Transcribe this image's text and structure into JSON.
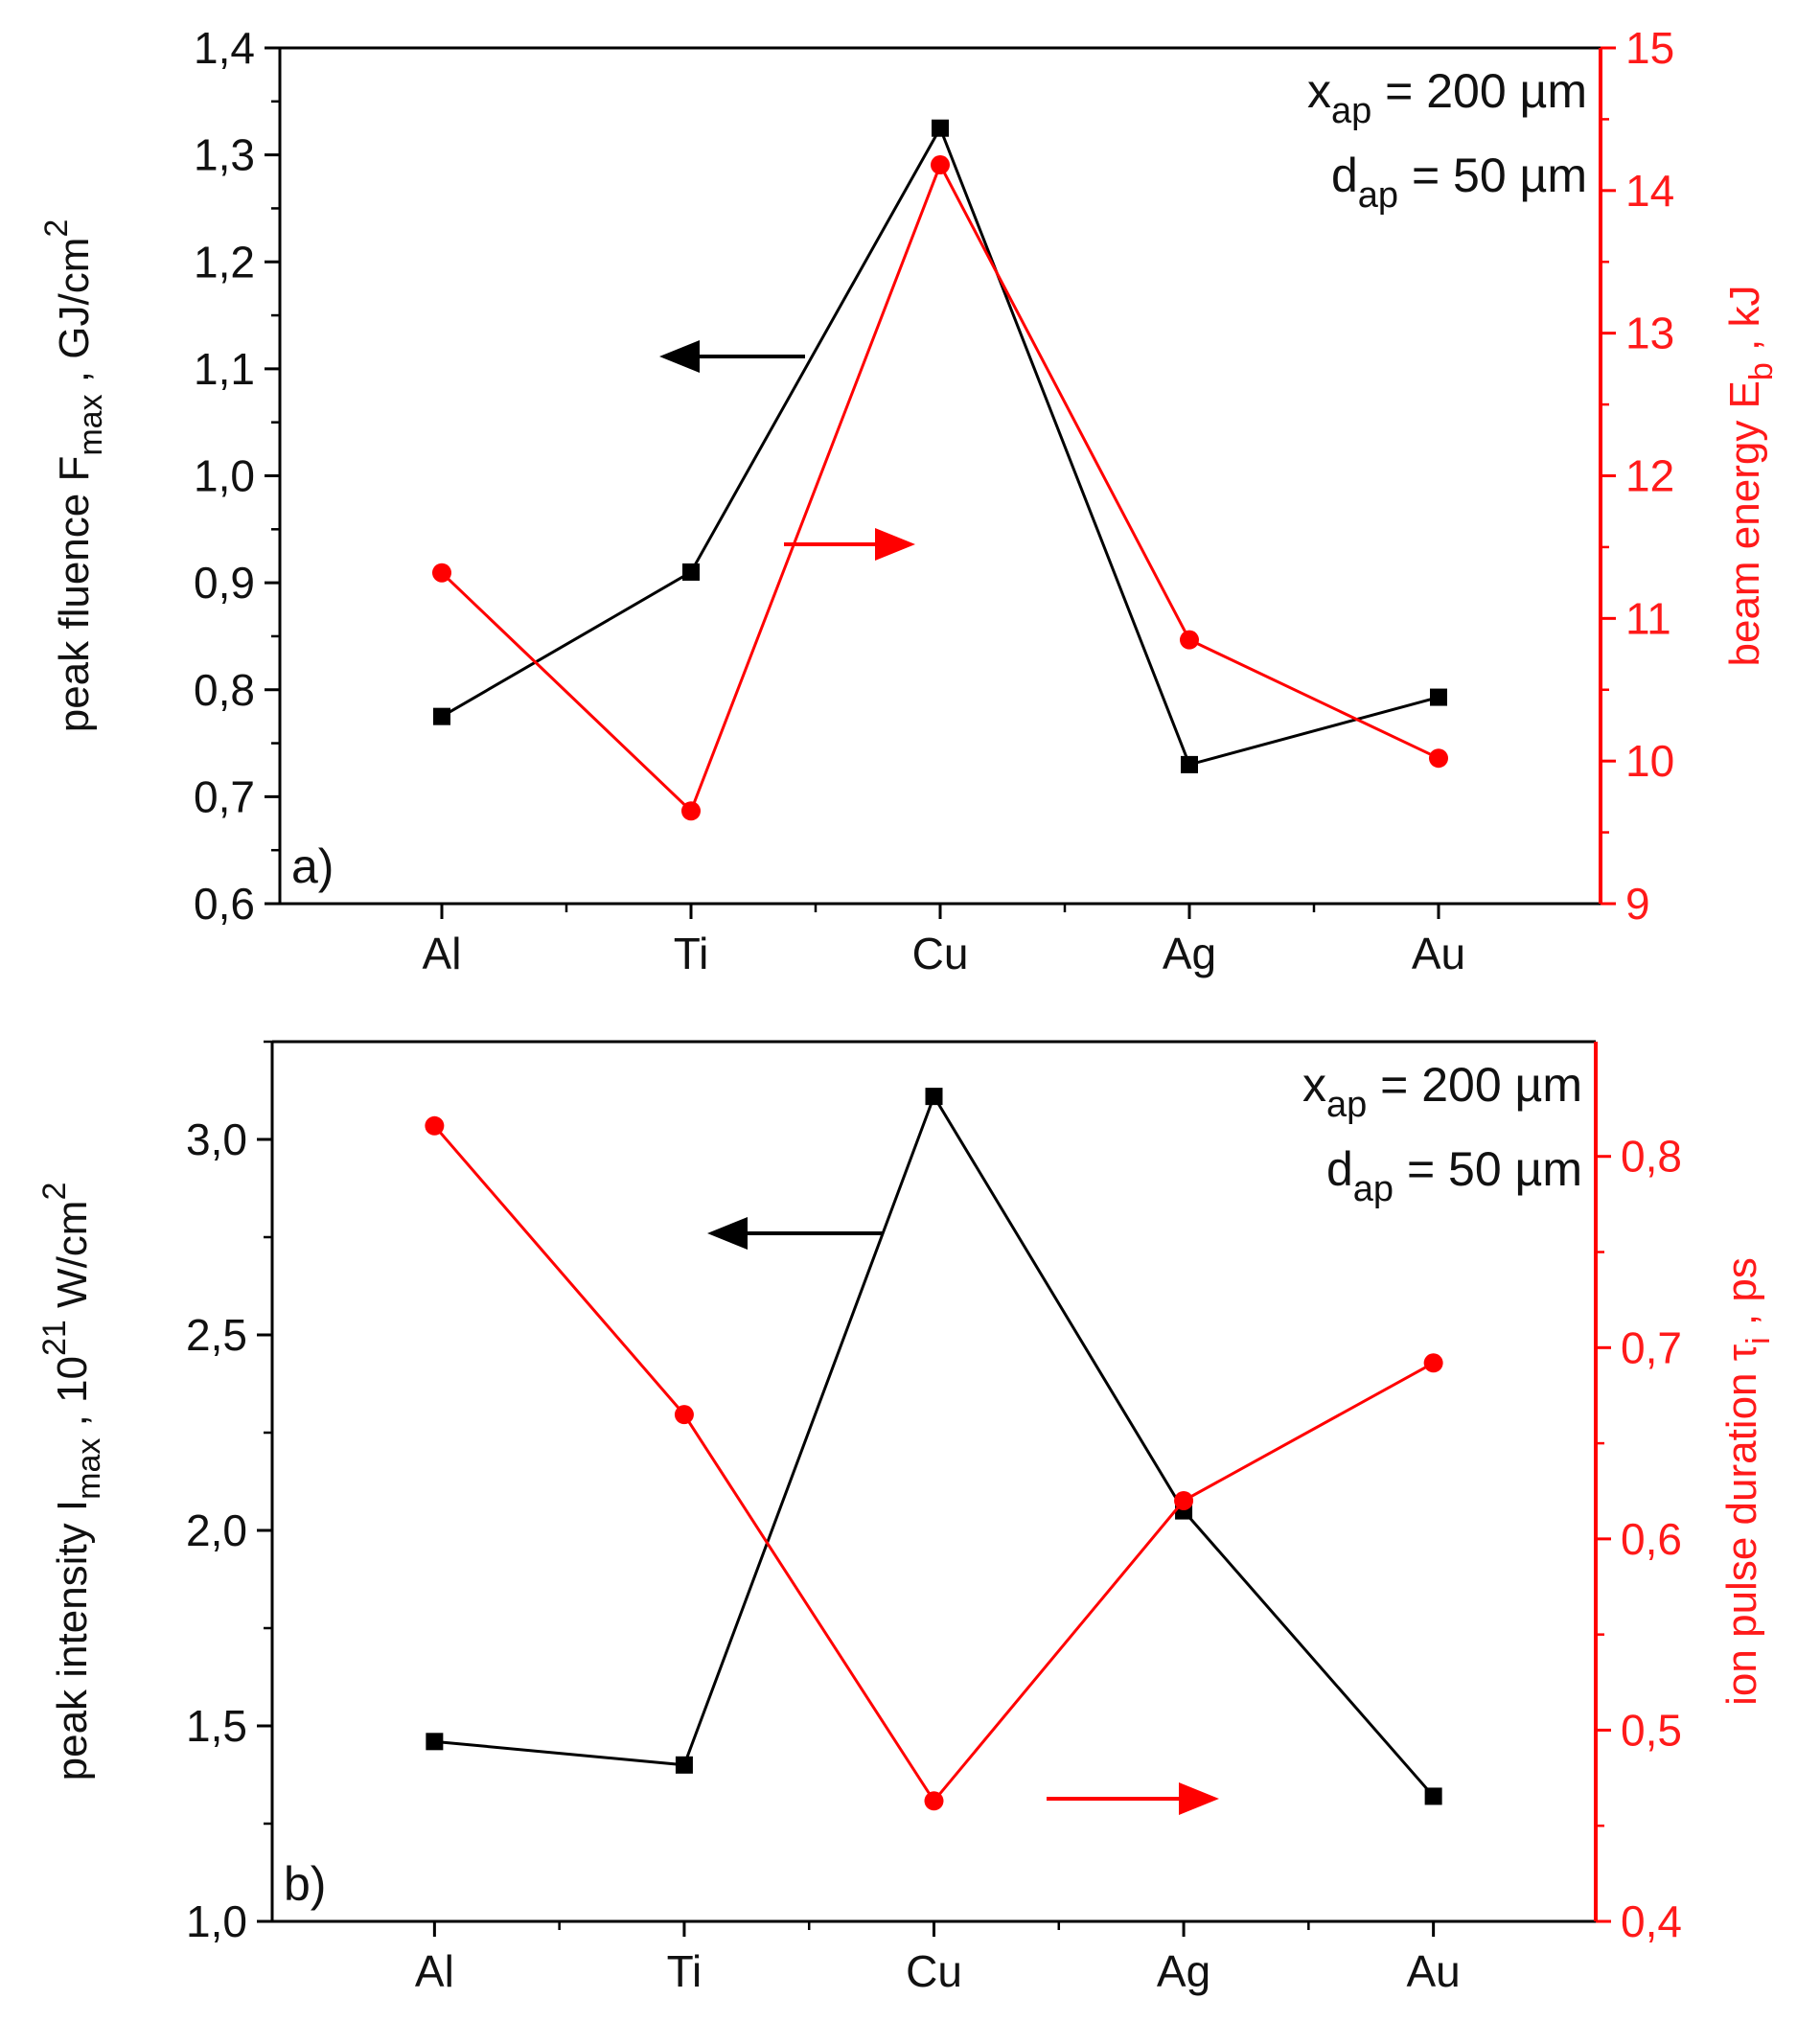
{
  "chart_data": [
    {
      "type": "line",
      "panel_label": "a)",
      "categories": [
        "Al",
        "Ti",
        "Cu",
        "Ag",
        "Au"
      ],
      "series": [
        {
          "name": "peak fluence",
          "axis": "left",
          "color": "#000000",
          "marker": "square",
          "values": [
            0.775,
            0.91,
            1.325,
            0.73,
            0.793
          ]
        },
        {
          "name": "beam energy",
          "axis": "right",
          "color": "#ff0000",
          "marker": "circle",
          "values": [
            11.32,
            9.65,
            14.18,
            10.85,
            10.02
          ]
        }
      ],
      "ylabel": {
        "main": "peak fluence F",
        "sub": "max",
        "unit": " , GJ/cm",
        "sup": "2"
      },
      "y2label": {
        "main": "beam energy E",
        "sub": "b",
        "unit": " ,  kJ"
      },
      "ylim": [
        0.6,
        1.4
      ],
      "y2lim": [
        9,
        15
      ],
      "yticks": [
        "0,6",
        "0,7",
        "0,8",
        "0,9",
        "1,0",
        "1,1",
        "1,2",
        "1,3",
        "1,4"
      ],
      "y2ticks": [
        "9",
        "10",
        "11",
        "12",
        "13",
        "14",
        "15"
      ],
      "annotations": [
        {
          "main": "x",
          "sub": "ap",
          "rest": " = 200 µm"
        },
        {
          "main": "d",
          "sub": "ap",
          "rest": " = 50 µm"
        }
      ]
    },
    {
      "type": "line",
      "panel_label": "b)",
      "categories": [
        "Al",
        "Ti",
        "Cu",
        "Ag",
        "Au"
      ],
      "series": [
        {
          "name": "peak intensity",
          "axis": "left",
          "color": "#000000",
          "marker": "square",
          "values": [
            1.46,
            1.4,
            3.11,
            2.05,
            1.32
          ]
        },
        {
          "name": "ion pulse duration",
          "axis": "right",
          "color": "#ff0000",
          "marker": "circle",
          "values": [
            0.816,
            0.665,
            0.463,
            0.62,
            0.692
          ]
        }
      ],
      "ylabel": {
        "main": "peak intensity I",
        "sub": "max",
        "unit": " , 10",
        "sup": "21",
        "unit2": " W/cm",
        "sup2": "2"
      },
      "y2label": {
        "main": "ion pulse duration τ",
        "sub": "i",
        "unit": " , ps"
      },
      "ylim": [
        1.0,
        3.25
      ],
      "y2lim": [
        0.4,
        0.86
      ],
      "yticks": [
        "1,0",
        "1,5",
        "2,0",
        "2,5",
        "3,0"
      ],
      "y2ticks": [
        "0,4",
        "0,5",
        "0,6",
        "0,7",
        "0,8"
      ],
      "annotations": [
        {
          "main": "x",
          "sub": "ap",
          "rest": " = 200 µm"
        },
        {
          "main": "d",
          "sub": "ap",
          "rest": " = 50 µm"
        }
      ]
    }
  ]
}
